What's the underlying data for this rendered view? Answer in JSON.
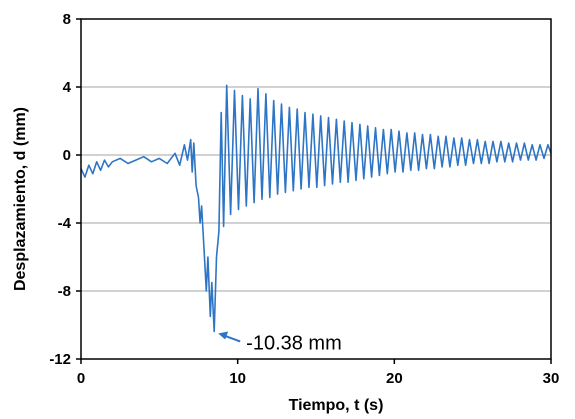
{
  "chart_data": {
    "type": "line",
    "xlabel": "Tiempo, t (s)",
    "ylabel": "Desplazamiento, d (mm)",
    "xlim": [
      0,
      30
    ],
    "ylim": [
      -12,
      8
    ],
    "xticks": [
      "0",
      "10",
      "20",
      "30"
    ],
    "yticks": [
      "8",
      "4",
      "0",
      "-4",
      "-8",
      "-12"
    ],
    "grid": "horizontal",
    "legend": "none",
    "series_color": "#2E75C5",
    "annotation": {
      "text": "-10.38 mm",
      "x": 8.5,
      "y": -10.38
    },
    "series": [
      {
        "x": [
          0,
          0.25,
          0.5,
          0.75,
          1.0,
          1.25,
          1.5,
          1.75,
          2.0,
          2.5,
          3.0,
          3.5,
          4.0,
          4.5,
          5.0,
          5.5,
          6.0,
          6.3,
          6.6,
          6.8,
          7.0,
          7.1,
          7.2,
          7.35,
          7.5,
          7.6,
          7.7,
          7.85,
          8.0,
          8.1,
          8.25,
          8.35,
          8.5,
          8.65,
          8.8,
          8.95,
          9.1,
          9.3,
          9.55,
          9.8,
          10.05,
          10.3,
          10.55,
          10.8,
          11.05,
          11.3,
          11.55,
          11.8,
          12.05,
          12.3,
          12.55,
          12.8,
          13.05,
          13.3,
          13.55,
          13.8,
          14.05,
          14.3,
          14.55,
          14.8,
          15.05,
          15.3,
          15.55,
          15.8,
          16.05,
          16.3,
          16.55,
          16.8,
          17.05,
          17.3,
          17.55,
          17.8,
          18.05,
          18.3,
          18.55,
          18.8,
          19.05,
          19.3,
          19.55,
          19.8,
          20.05,
          20.3,
          20.55,
          20.8,
          21.05,
          21.3,
          21.55,
          21.8,
          22.05,
          22.3,
          22.55,
          22.8,
          23.05,
          23.3,
          23.55,
          23.8,
          24.05,
          24.3,
          24.55,
          24.8,
          25.05,
          25.3,
          25.55,
          25.8,
          26.05,
          26.3,
          26.55,
          26.8,
          27.05,
          27.3,
          27.55,
          27.8,
          28.05,
          28.3,
          28.55,
          28.8,
          29.05,
          29.3,
          29.55,
          29.8,
          30.0
        ],
        "values": [
          -0.8,
          -1.3,
          -0.6,
          -1.1,
          -0.4,
          -0.9,
          -0.3,
          -0.7,
          -0.4,
          -0.2,
          -0.5,
          -0.3,
          -0.1,
          -0.4,
          -0.2,
          -0.5,
          0.1,
          -0.6,
          0.6,
          -0.3,
          0.9,
          -1.0,
          0.7,
          -1.8,
          -2.5,
          -4.0,
          -3.0,
          -5.5,
          -8.0,
          -6.0,
          -9.5,
          -7.5,
          -10.38,
          -6.0,
          -4.5,
          2.5,
          -4.2,
          4.1,
          -3.5,
          3.8,
          -3.2,
          3.5,
          -3.0,
          3.3,
          -2.8,
          3.9,
          -2.6,
          3.6,
          -2.5,
          3.2,
          -2.3,
          3.0,
          -2.2,
          2.8,
          -2.1,
          2.7,
          -2.0,
          2.5,
          -1.9,
          2.4,
          -1.9,
          2.3,
          -1.8,
          2.2,
          -1.7,
          2.1,
          -1.6,
          2.0,
          -1.6,
          1.9,
          -1.5,
          1.8,
          -1.4,
          1.7,
          -1.3,
          1.6,
          -1.2,
          1.5,
          -1.1,
          1.5,
          -1.0,
          1.4,
          -1.0,
          1.3,
          -0.9,
          1.3,
          -0.9,
          1.2,
          -0.8,
          1.2,
          -0.8,
          1.1,
          -0.7,
          1.1,
          -0.7,
          1.0,
          -0.6,
          1.0,
          -0.6,
          0.9,
          -0.5,
          0.9,
          -0.5,
          0.8,
          -0.5,
          0.8,
          -0.4,
          0.8,
          -0.4,
          0.7,
          -0.4,
          0.7,
          -0.3,
          0.7,
          -0.3,
          0.6,
          -0.3,
          0.6,
          -0.2,
          0.6,
          0.1
        ]
      }
    ]
  }
}
